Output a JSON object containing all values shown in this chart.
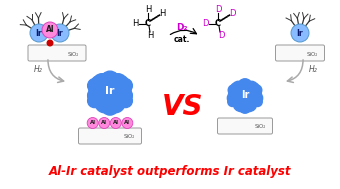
{
  "title": "Al-Ir catalyst outperforms Ir catalyst",
  "title_color": "#ff0000",
  "title_fontsize": 8.5,
  "bg_color": "#ffffff",
  "methane_label": "cat.",
  "d2_label": "D₂",
  "d2_color": "#cc00cc",
  "vs_text": "VS",
  "vs_color": "#ff0000",
  "vs_fontsize": 20,
  "sio2_label": "SiO₂",
  "h2_label": "H₂",
  "ir_color": "#4488ee",
  "ir_light": "#88bbff",
  "al_color": "#ff88dd",
  "al_border": "#dd44bb",
  "box_edge": "#999999",
  "box_face": "#f9f9f9",
  "ligand_color": "#333333",
  "arrow_color": "#aaaaaa",
  "purple": "#cc00cc"
}
